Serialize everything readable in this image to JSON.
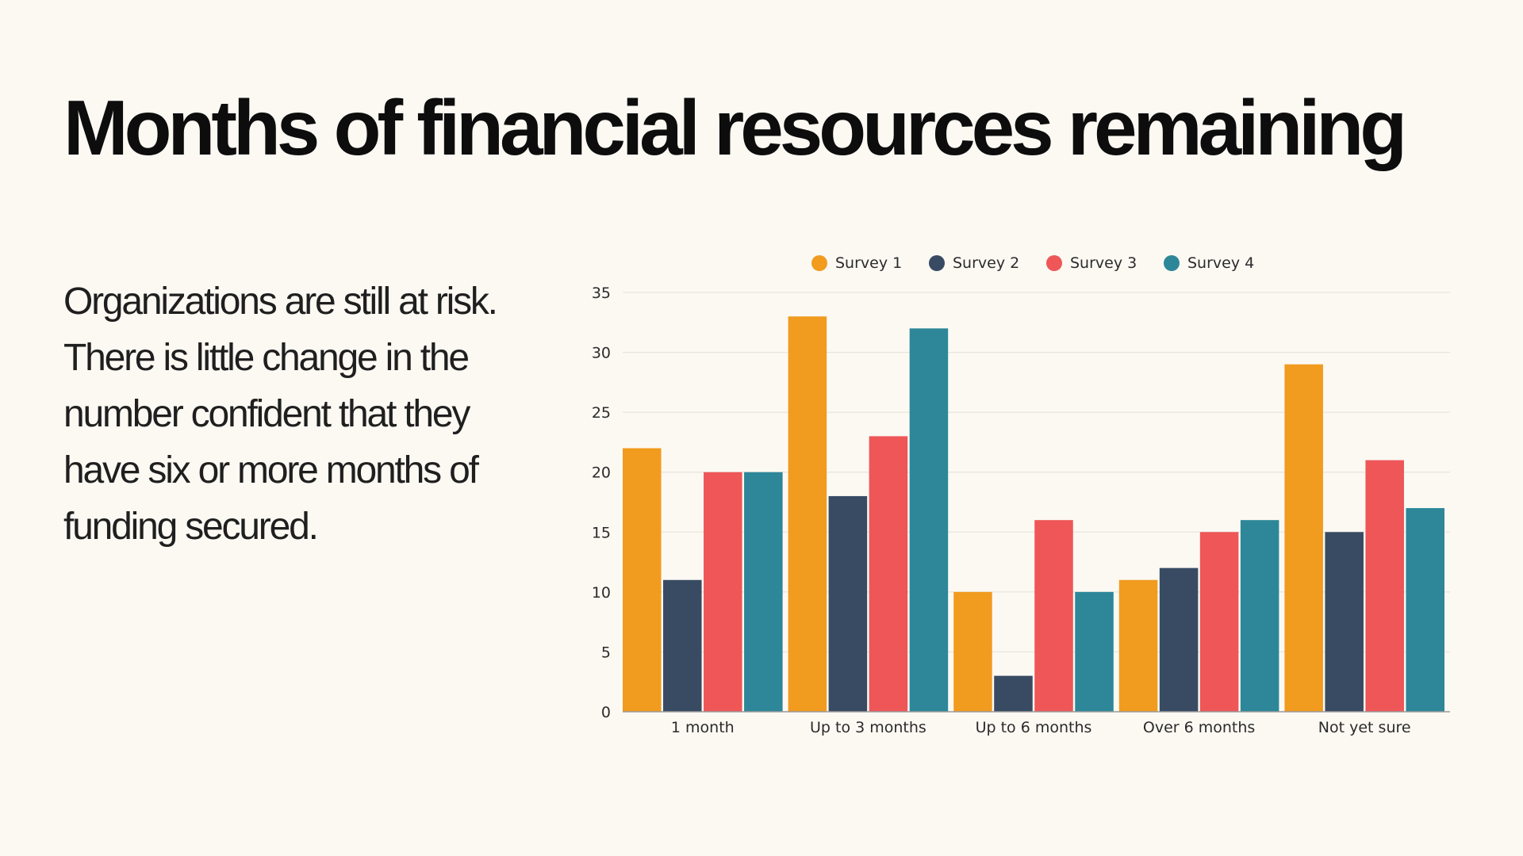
{
  "slide": {
    "title": "Months of financial resources remaining",
    "body": "Organizations are still at risk. There is little change in the number confident that they have six or more months of funding secured."
  },
  "chart_data": {
    "type": "bar",
    "title": "",
    "xlabel": "",
    "ylabel": "",
    "categories": [
      "1 month",
      "Up to 3 months",
      "Up to 6 months",
      "Over 6 months",
      "Not yet sure"
    ],
    "series": [
      {
        "name": "Survey 1",
        "color": "#f19b1f",
        "values": [
          22,
          33,
          10,
          11,
          29
        ]
      },
      {
        "name": "Survey 2",
        "color": "#384b63",
        "values": [
          11,
          18,
          3,
          12,
          15
        ]
      },
      {
        "name": "Survey 3",
        "color": "#ee5658",
        "values": [
          20,
          23,
          16,
          15,
          21
        ]
      },
      {
        "name": "Survey 4",
        "color": "#2d8799",
        "values": [
          20,
          32,
          10,
          16,
          17
        ]
      }
    ],
    "ylim": [
      0,
      35
    ],
    "yticks": [
      0,
      5,
      10,
      15,
      20,
      25,
      30,
      35
    ],
    "grid": true,
    "legend": "top-center"
  }
}
